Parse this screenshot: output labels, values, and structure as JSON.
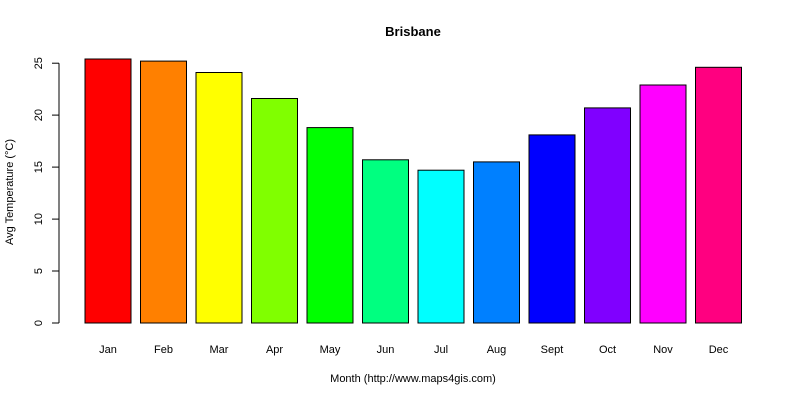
{
  "chart_data": {
    "type": "bar",
    "title": "Brisbane",
    "xlabel": "Month (http://www.maps4gis.com)",
    "ylabel": "Avg Temperature (°C)",
    "categories": [
      "Jan",
      "Feb",
      "Mar",
      "Apr",
      "May",
      "Jun",
      "Jul",
      "Aug",
      "Sept",
      "Oct",
      "Nov",
      "Dec"
    ],
    "values": [
      25.4,
      25.2,
      24.1,
      21.6,
      18.8,
      15.7,
      14.7,
      15.5,
      18.1,
      20.7,
      22.9,
      24.6
    ],
    "colors": [
      "#ff0000",
      "#ff8000",
      "#ffff00",
      "#80ff00",
      "#00ff00",
      "#00ff80",
      "#00ffff",
      "#0080ff",
      "#0000ff",
      "#8000ff",
      "#ff00ff",
      "#ff0080"
    ],
    "yticks": [
      0,
      5,
      10,
      15,
      20,
      25
    ],
    "ylim": [
      0,
      25.4
    ],
    "grid": false,
    "legend": "none"
  }
}
